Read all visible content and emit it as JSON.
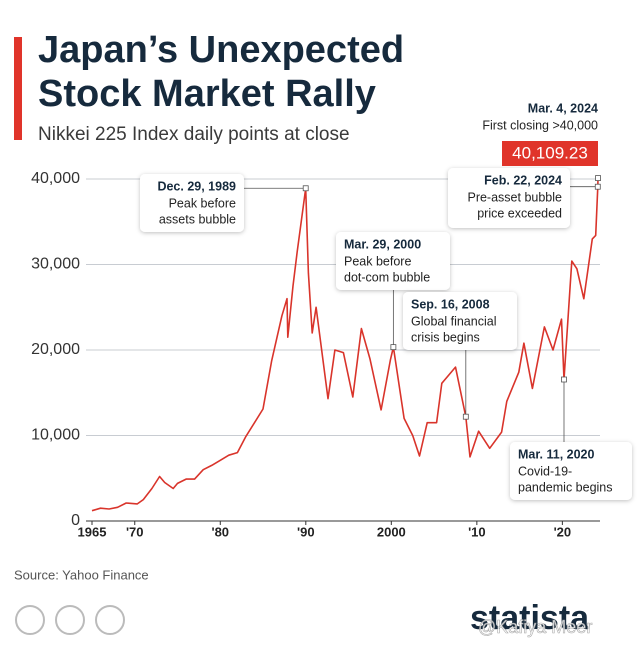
{
  "chart_data": {
    "type": "line",
    "title": "Japan’s Unexpected Stock Market Rally",
    "subtitle": "Nikkei 225 Index daily points at close",
    "source": "Source: Yahoo Finance",
    "brand": "statista",
    "watermark": "@Kafiya Meer",
    "x": [
      1965,
      1966,
      1967,
      1968,
      1969,
      1970.3,
      1971,
      1972,
      1972.9,
      1973.5,
      1974.5,
      1975,
      1976,
      1977,
      1978,
      1979,
      1980,
      1981,
      1982,
      1983,
      1984,
      1985,
      1986,
      1987.2,
      1987.8,
      1987.9,
      1988.5,
      1989,
      1989.99,
      1990.3,
      1990.75,
      1991.2,
      1992.6,
      1993.4,
      1994.4,
      1995.5,
      1996.5,
      1997.5,
      1998.8,
      1999.9,
      2000.24,
      2001.5,
      2002.5,
      2003.3,
      2004.2,
      2005.3,
      2005.9,
      2007.5,
      2008.71,
      2009.2,
      2010.2,
      2011.5,
      2012.9,
      2013.5,
      2014.9,
      2015.5,
      2016.5,
      2017.9,
      2018.9,
      2019.9,
      2020.19,
      2020.9,
      2021.1,
      2021.7,
      2022.5,
      2023.5,
      2023.9,
      2024.14,
      2024.17
    ],
    "series": [
      {
        "name": "Nikkei 225",
        "color": "#d9342b",
        "values": [
          1200,
          1500,
          1400,
          1600,
          2100,
          2000,
          2500,
          3800,
          5200,
          4500,
          3800,
          4400,
          4900,
          4900,
          6000,
          6500,
          7100,
          7700,
          8000,
          9900,
          11500,
          13100,
          18700,
          24000,
          26000,
          21500,
          27500,
          31500,
          38916,
          29000,
          22000,
          25000,
          14300,
          20000,
          19700,
          14500,
          22500,
          19000,
          13000,
          18900,
          20337,
          12000,
          10000,
          7600,
          11500,
          11500,
          16100,
          18000,
          12200,
          7500,
          10500,
          8500,
          10400,
          14000,
          17400,
          20800,
          15500,
          22700,
          20000,
          23600,
          16550,
          27400,
          30400,
          29500,
          26000,
          33000,
          33400,
          39098,
          40109.23
        ]
      }
    ],
    "xlim": [
      1964.3,
      2024.4
    ],
    "ylim": [
      0,
      40000
    ],
    "xticks": [
      1965,
      {
        "value": 1970,
        "label": "'70"
      },
      {
        "value": 1980,
        "label": "'80"
      },
      {
        "value": 1990,
        "label": "'90"
      },
      2000,
      {
        "value": 2010,
        "label": "'10"
      },
      {
        "value": 2020,
        "label": "'20"
      }
    ],
    "yticks": [
      0,
      {
        "value": 10000,
        "label": "10,000"
      },
      {
        "value": 20000,
        "label": "20,000"
      },
      {
        "value": 30000,
        "label": "30,000"
      },
      {
        "value": 40000,
        "label": "40,000"
      }
    ],
    "grid": true,
    "annotations": [
      {
        "date": "Dec. 29, 1989",
        "lines": [
          "Peak before",
          "assets bubble"
        ],
        "x": 1989.99,
        "y": 38916
      },
      {
        "date": "Mar. 29, 2000",
        "lines": [
          "Peak before",
          "dot-com bubble"
        ],
        "x": 2000.24,
        "y": 20337
      },
      {
        "date": "Sep. 16, 2008",
        "lines": [
          "Global financial",
          "crisis begins"
        ],
        "x": 2008.71,
        "y": 12200
      },
      {
        "date": "Mar. 11, 2020",
        "lines": [
          "Covid-19-",
          "pandemic begins"
        ],
        "x": 2020.19,
        "y": 16550
      },
      {
        "date": "Feb. 22, 2024",
        "lines": [
          "Pre-asset bubble",
          "price exceeded"
        ],
        "x": 2024.14,
        "y": 39098
      },
      {
        "date": "Mar. 4, 2024",
        "lines": [
          "First closing >40,000"
        ],
        "x": 2024.17,
        "y": 40109.23,
        "value_label": "40,109.23"
      }
    ]
  }
}
